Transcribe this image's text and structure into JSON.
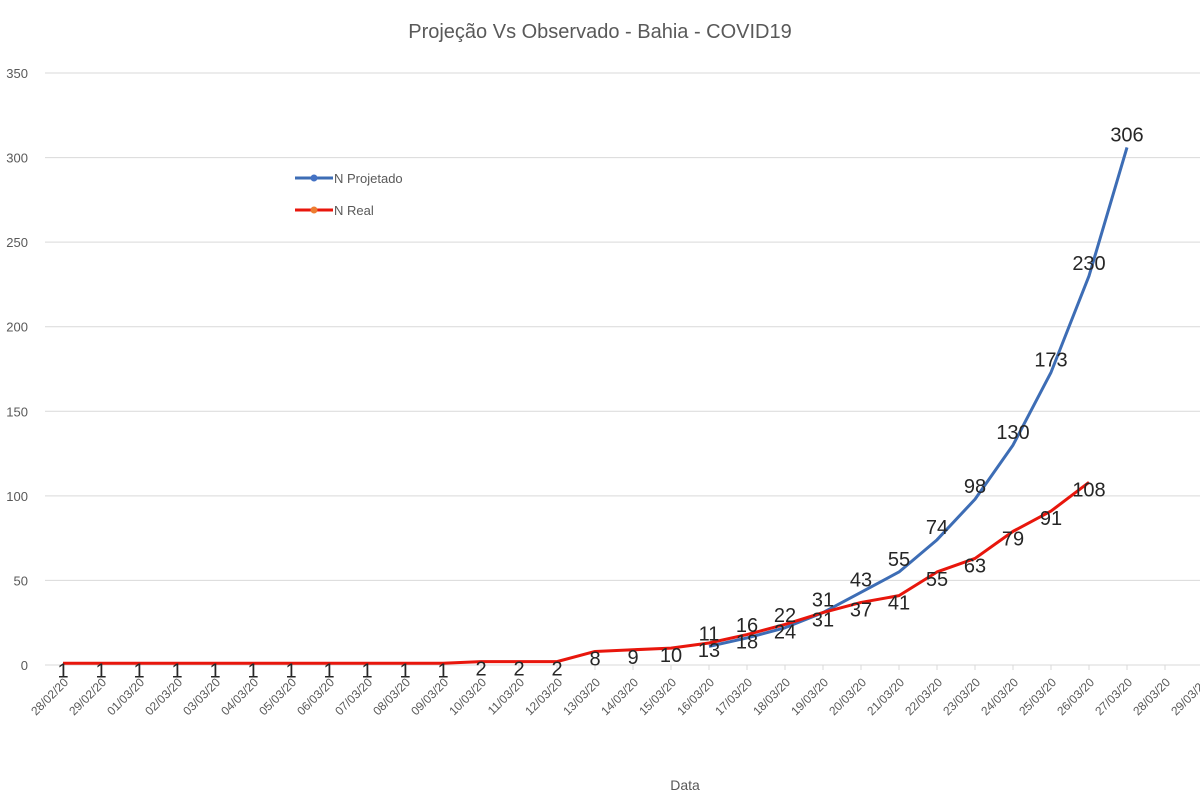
{
  "chart_data": {
    "type": "line",
    "title": "Projeção Vs Observado - Bahia - COVID19",
    "x_label": "Data",
    "categories": [
      "28/02/20",
      "29/02/20",
      "01/03/20",
      "02/03/20",
      "03/03/20",
      "04/03/20",
      "05/03/20",
      "06/03/20",
      "07/03/20",
      "08/03/20",
      "09/03/20",
      "10/03/20",
      "11/03/20",
      "12/03/20",
      "13/03/20",
      "14/03/20",
      "15/03/20",
      "16/03/20",
      "17/03/20",
      "18/03/20",
      "19/03/20",
      "20/03/20",
      "21/03/20",
      "22/03/20",
      "23/03/20",
      "24/03/20",
      "25/03/20",
      "26/03/20",
      "27/03/20",
      "28/03/20",
      "29/03/20"
    ],
    "series": [
      {
        "name": "N Projetado",
        "color": "#3d6db5",
        "marker_color": "#4472c4",
        "values": [
          null,
          null,
          null,
          null,
          null,
          null,
          null,
          null,
          null,
          null,
          null,
          null,
          null,
          null,
          null,
          null,
          null,
          11,
          16,
          22,
          31,
          43,
          55,
          74,
          98,
          130,
          173,
          230,
          306,
          null,
          null
        ]
      },
      {
        "name": "N Real",
        "color": "#e8160c",
        "marker_color": "#ed7d31",
        "values": [
          1,
          1,
          1,
          1,
          1,
          1,
          1,
          1,
          1,
          1,
          1,
          2,
          2,
          2,
          8,
          9,
          10,
          13,
          18,
          24,
          31,
          37,
          41,
          55,
          63,
          79,
          91,
          108,
          null,
          null,
          null
        ]
      }
    ],
    "ylim": [
      0,
      350
    ],
    "yticks": [
      0,
      50,
      100,
      150,
      200,
      250,
      300,
      350
    ],
    "grid": true
  }
}
